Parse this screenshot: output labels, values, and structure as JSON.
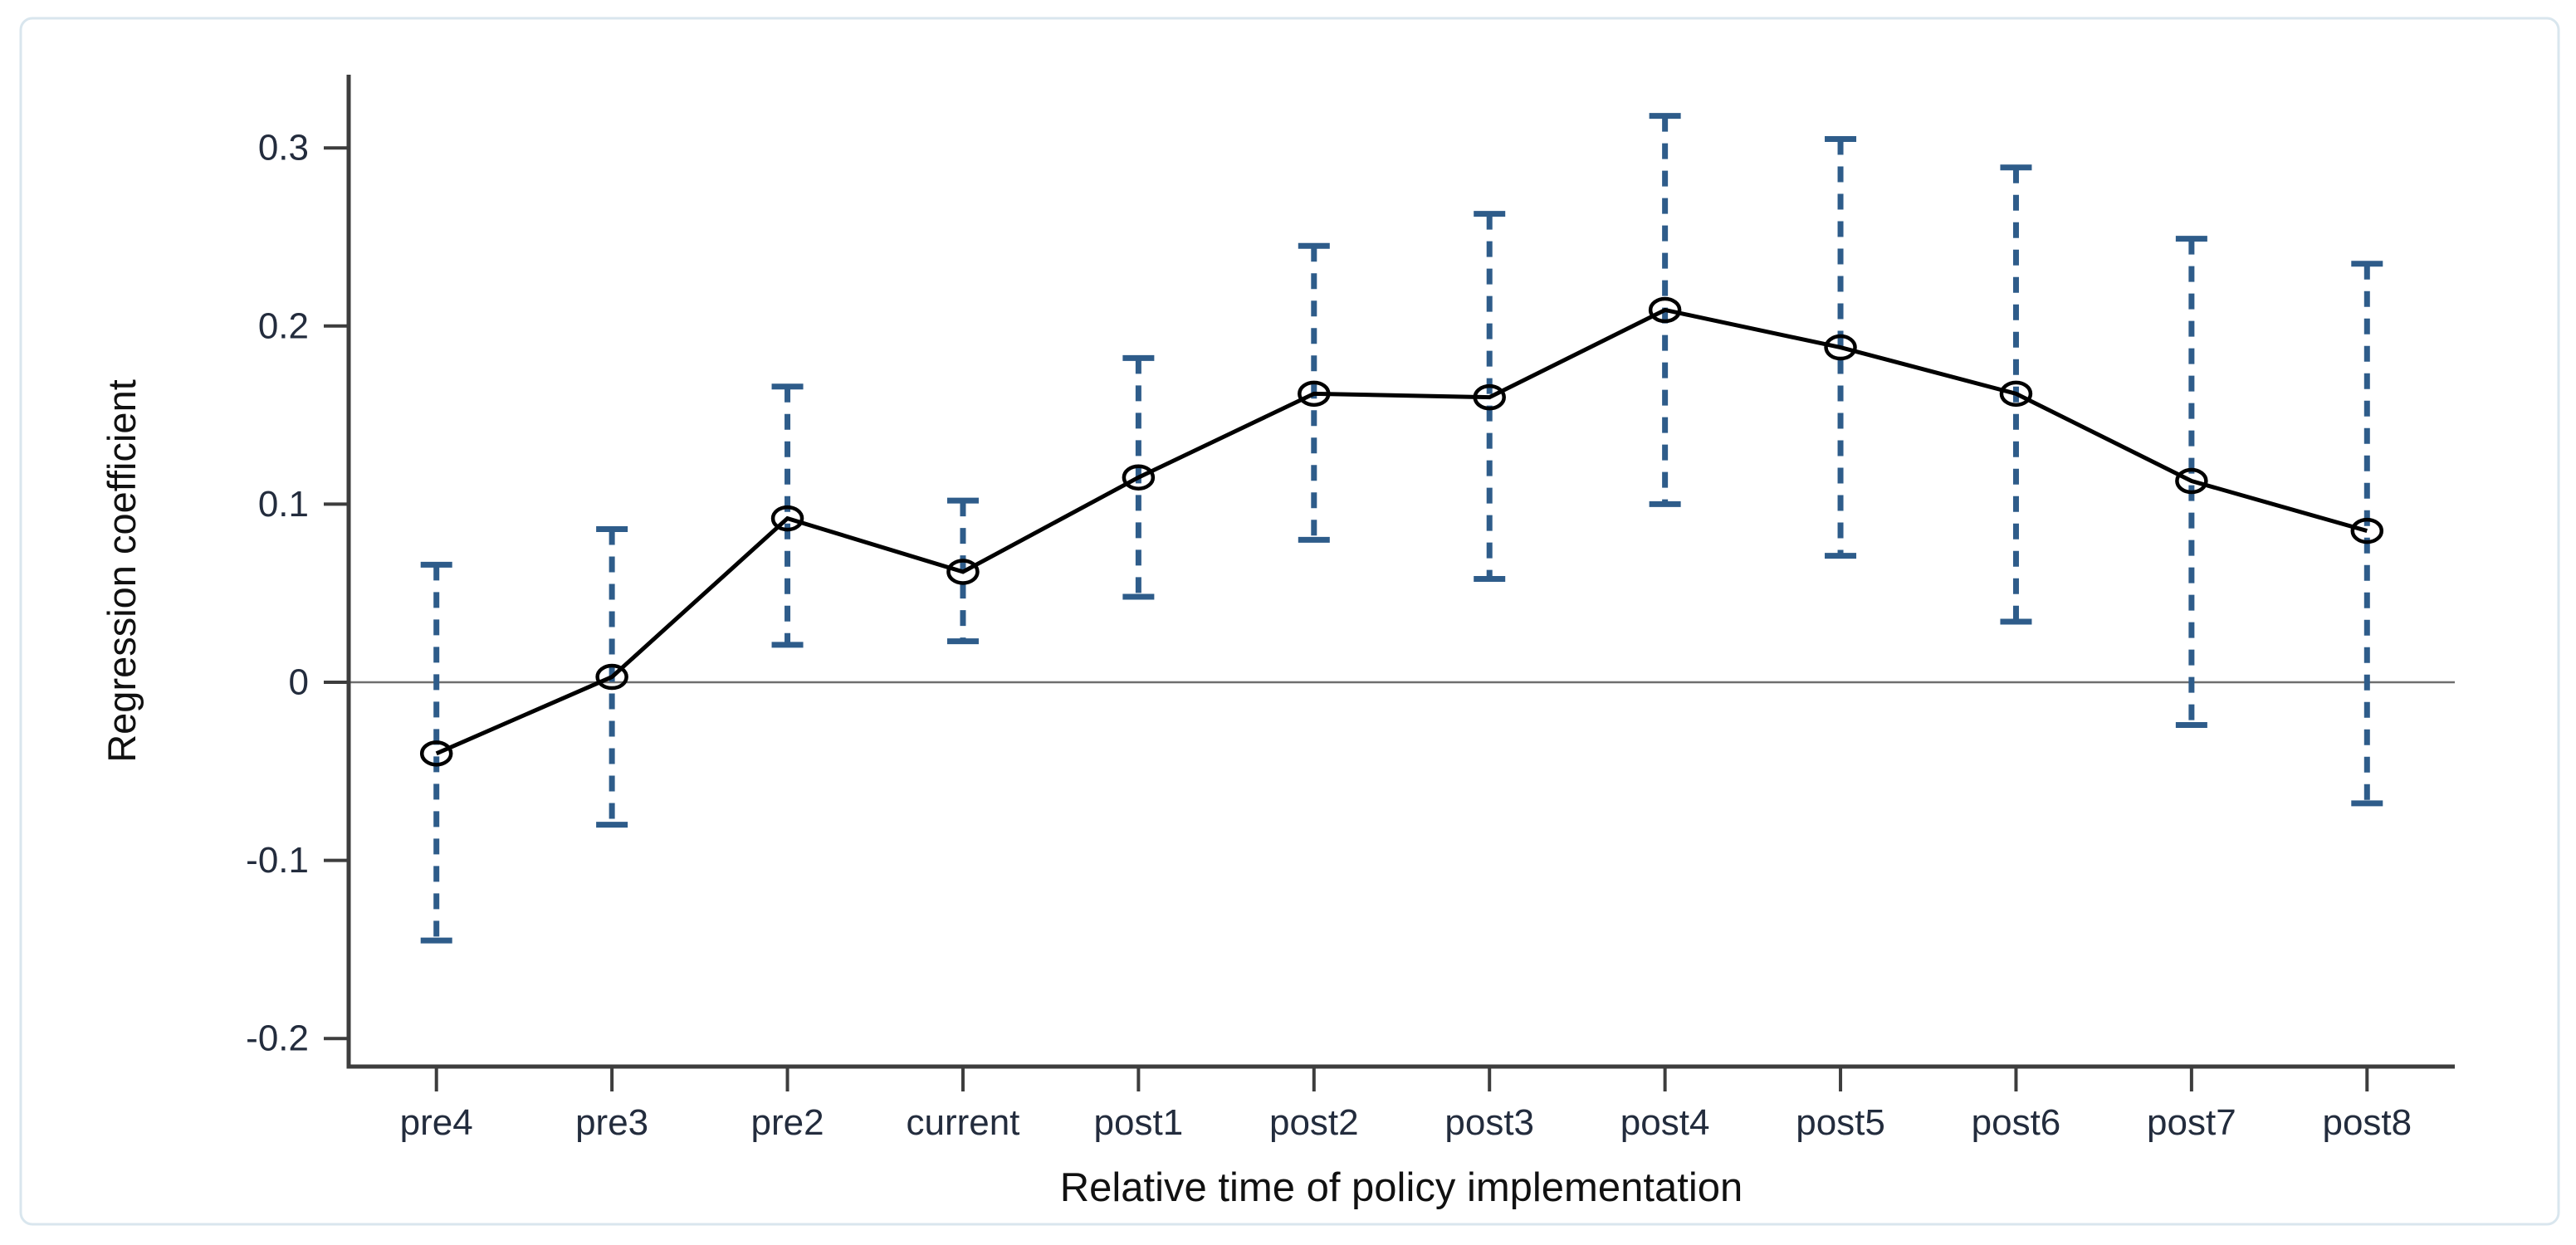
{
  "chart_data": {
    "type": "line",
    "title": "",
    "xlabel": "Relative time of policy implementation",
    "ylabel": "Regression coefficient",
    "categories": [
      "pre4",
      "pre3",
      "pre2",
      "current",
      "post1",
      "post2",
      "post3",
      "post4",
      "post5",
      "post6",
      "post7",
      "post8"
    ],
    "series": [
      {
        "name": "Regression coefficient",
        "values": [
          -0.04,
          0.003,
          0.092,
          0.062,
          0.115,
          0.162,
          0.16,
          0.209,
          0.188,
          0.162,
          0.113,
          0.085
        ]
      }
    ],
    "ci_lower": [
      -0.145,
      -0.08,
      0.021,
      0.023,
      0.048,
      0.08,
      0.058,
      0.1,
      0.071,
      0.034,
      -0.024,
      -0.068
    ],
    "ci_upper": [
      0.066,
      0.086,
      0.166,
      0.102,
      0.182,
      0.245,
      0.263,
      0.318,
      0.305,
      0.289,
      0.249,
      0.235
    ],
    "yticks": [
      0.3,
      0.2,
      0.1,
      0,
      -0.1,
      -0.2
    ],
    "ytick_labels": [
      "0.3",
      "0.2",
      "0.1",
      "0",
      "-0.1",
      "-0.2"
    ],
    "ylim": [
      -0.216,
      0.342
    ],
    "grid": false,
    "zero_line": true,
    "legend_position": "none",
    "marker": "hollow-circle",
    "ci_style": "dashed-with-caps",
    "colors": {
      "series": "#000000",
      "marker_stroke": "#000000",
      "ci": "#2e5c8a",
      "axis": "#3d3d3d",
      "zero_line": "#6e6e6e",
      "tick_text": "#232c3d",
      "title_text": "#111111",
      "frame_border": "#d9e6ee",
      "background": "#ffffff"
    }
  }
}
